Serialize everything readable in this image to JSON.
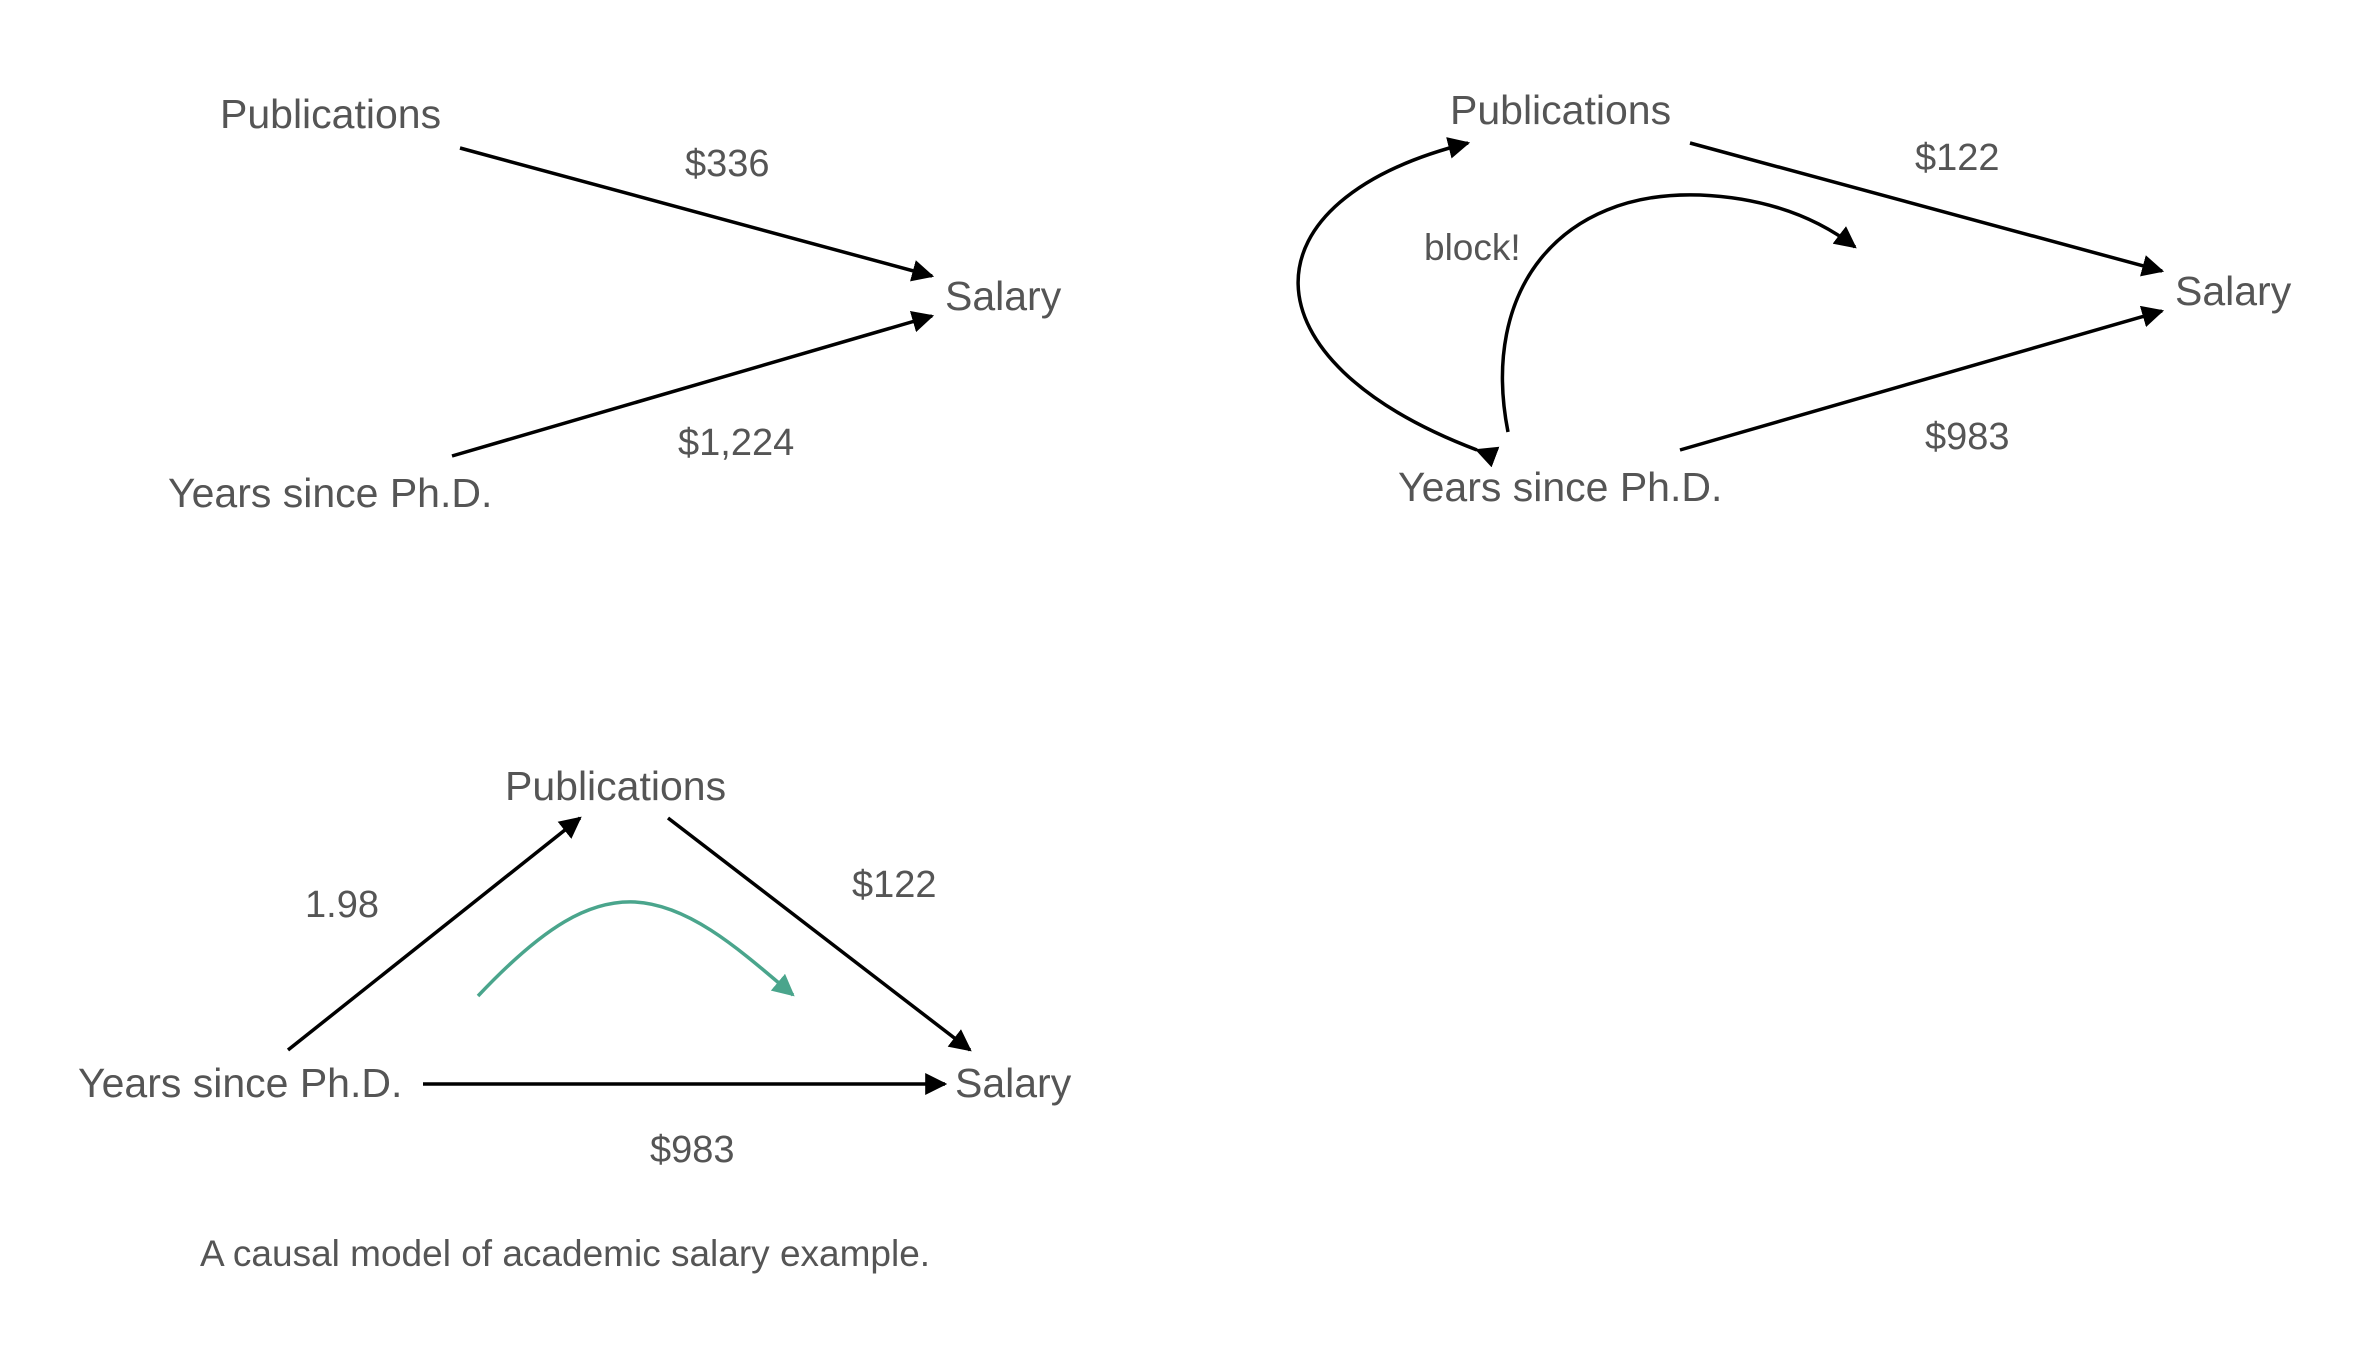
{
  "colors": {
    "text": "#555555",
    "edge": "#000000",
    "accent": "#4aa58c",
    "background": "#ffffff"
  },
  "diagram1": {
    "nodes": {
      "publications": "Publications",
      "salary": "Salary",
      "years": "Years since Ph.D."
    },
    "edges": {
      "publications_salary": "$336",
      "years_salary": "$1,224"
    }
  },
  "diagram2": {
    "nodes": {
      "publications": "Publications",
      "salary": "Salary",
      "years": "Years since Ph.D."
    },
    "edges": {
      "publications_salary": "$122",
      "years_salary": "$983"
    },
    "note": "block!"
  },
  "diagram3": {
    "nodes": {
      "publications": "Publications",
      "salary": "Salary",
      "years": "Years since Ph.D."
    },
    "edges": {
      "years_publications": "1.98",
      "publications_salary": "$122",
      "years_salary": "$983"
    }
  },
  "caption": "A causal model of academic salary example."
}
